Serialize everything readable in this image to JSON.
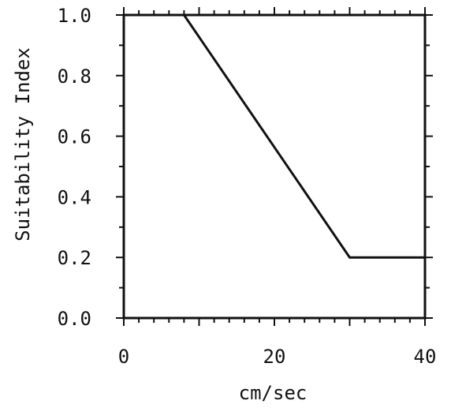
{
  "chart_data": {
    "type": "line",
    "title": "",
    "xlabel": "cm/sec",
    "ylabel": "Suitability Index",
    "xlim": [
      0,
      40
    ],
    "ylim": [
      0,
      1.0
    ],
    "x_ticks": [
      0,
      20,
      40
    ],
    "x_tick_labels": [
      "0",
      "20",
      "40"
    ],
    "y_ticks": [
      0,
      0.2,
      0.4,
      0.6,
      0.8,
      1.0
    ],
    "y_tick_labels": [
      "0.0",
      "0.2",
      "0.4",
      "0.6",
      "0.8",
      "1.0"
    ],
    "x_minor_step": 2,
    "y_minor_step": 0.1,
    "grid": false,
    "series": [
      {
        "x": [
          0,
          8,
          30,
          40
        ],
        "y": [
          1.0,
          1.0,
          0.2,
          0.2
        ]
      }
    ]
  }
}
